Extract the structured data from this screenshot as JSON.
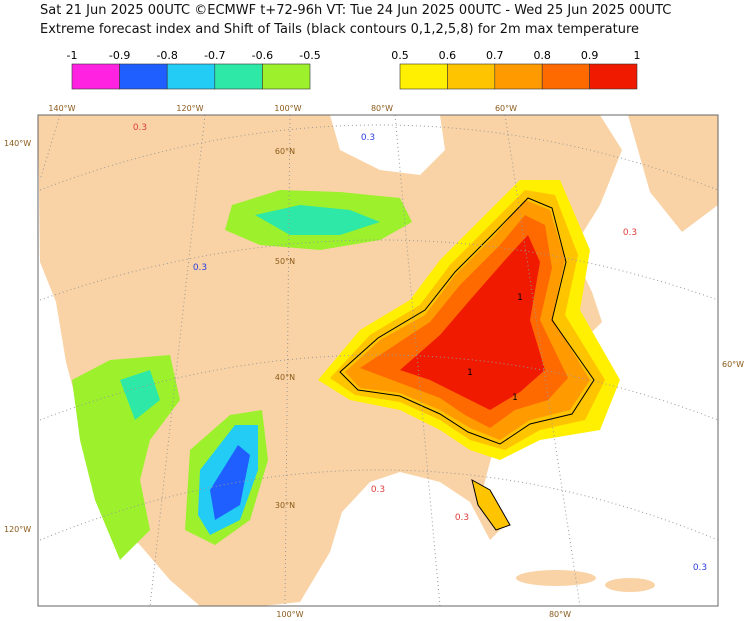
{
  "header": {
    "line1": "Sat 21 Jun 2025 00UTC ©ECMWF t+72-96h  VT: Tue 24 Jun 2025 00UTC - Wed 25 Jun 2025 00UTC",
    "line2": "Extreme forecast index and Shift of Tails (black contours 0,1,2,5,8) for 2m max temperature"
  },
  "legend": {
    "negative": {
      "ticks": [
        -1,
        -0.9,
        -0.8,
        -0.7,
        -0.6,
        -0.5
      ],
      "colors": [
        "#ff22e0",
        "#1f5fff",
        "#22ccf5",
        "#2ee8a8",
        "#9cf02c"
      ]
    },
    "positive": {
      "ticks": [
        0.5,
        0.6,
        0.7,
        0.8,
        0.9,
        1
      ],
      "colors": [
        "#ffef00",
        "#ffc400",
        "#ff9a00",
        "#ff6a00",
        "#f01a00"
      ]
    }
  },
  "map": {
    "lon_labels_top": [
      "140°W",
      "120°W",
      "100°W",
      "80°W",
      "60°W"
    ],
    "lon_labels_left": [
      "140°W",
      "120°W"
    ],
    "lon_labels_right": [
      "60°W"
    ],
    "lon_labels_bottom": [
      "100°W",
      "80°W"
    ],
    "lat_labels": [
      "60°N",
      "50°N",
      "40°N",
      "30°N"
    ],
    "contour_labels": [
      "0.3",
      "0.3",
      "0.3",
      "0.3",
      "0.3",
      "0.3",
      "0.3",
      "1",
      "1",
      "1"
    ]
  }
}
